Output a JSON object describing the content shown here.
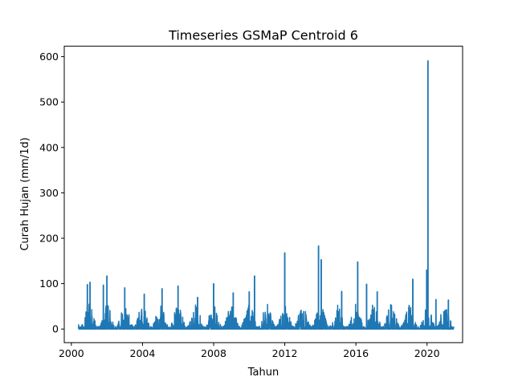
{
  "chart_data": {
    "type": "line",
    "title": "Timeseries GSMaP Centroid 6",
    "xlabel": "Tahun",
    "ylabel": "Curah Hujan (mm/1d)",
    "xlim": [
      1999.6,
      2022.0
    ],
    "ylim": [
      -30,
      623
    ],
    "xticks": [
      2000,
      2004,
      2008,
      2012,
      2016,
      2020
    ],
    "xtick_labels": [
      "2000",
      "2004",
      "2008",
      "2012",
      "2016",
      "2020"
    ],
    "yticks": [
      0,
      100,
      200,
      300,
      400,
      500,
      600
    ],
    "ytick_labels": [
      "0",
      "100",
      "200",
      "300",
      "400",
      "500",
      "600"
    ],
    "grid": false,
    "legend": "none",
    "color": "#1f77b4",
    "x_range_data": [
      2000.4,
      2021.5
    ],
    "noted_peaks": [
      {
        "x": 2000.9,
        "y": 98
      },
      {
        "x": 2001.05,
        "y": 103
      },
      {
        "x": 2001.8,
        "y": 97
      },
      {
        "x": 2002.0,
        "y": 117
      },
      {
        "x": 2003.0,
        "y": 91
      },
      {
        "x": 2004.1,
        "y": 77
      },
      {
        "x": 2005.1,
        "y": 89
      },
      {
        "x": 2006.0,
        "y": 95
      },
      {
        "x": 2007.1,
        "y": 70
      },
      {
        "x": 2008.0,
        "y": 100
      },
      {
        "x": 2009.1,
        "y": 80
      },
      {
        "x": 2010.0,
        "y": 82
      },
      {
        "x": 2010.3,
        "y": 117
      },
      {
        "x": 2012.0,
        "y": 168
      },
      {
        "x": 2013.9,
        "y": 183
      },
      {
        "x": 2014.05,
        "y": 153
      },
      {
        "x": 2015.2,
        "y": 83
      },
      {
        "x": 2016.1,
        "y": 148
      },
      {
        "x": 2016.6,
        "y": 99
      },
      {
        "x": 2017.2,
        "y": 82
      },
      {
        "x": 2019.2,
        "y": 110
      },
      {
        "x": 2019.98,
        "y": 130
      },
      {
        "x": 2020.05,
        "y": 591
      },
      {
        "x": 2020.5,
        "y": 65
      },
      {
        "x": 2021.2,
        "y": 64
      }
    ]
  }
}
